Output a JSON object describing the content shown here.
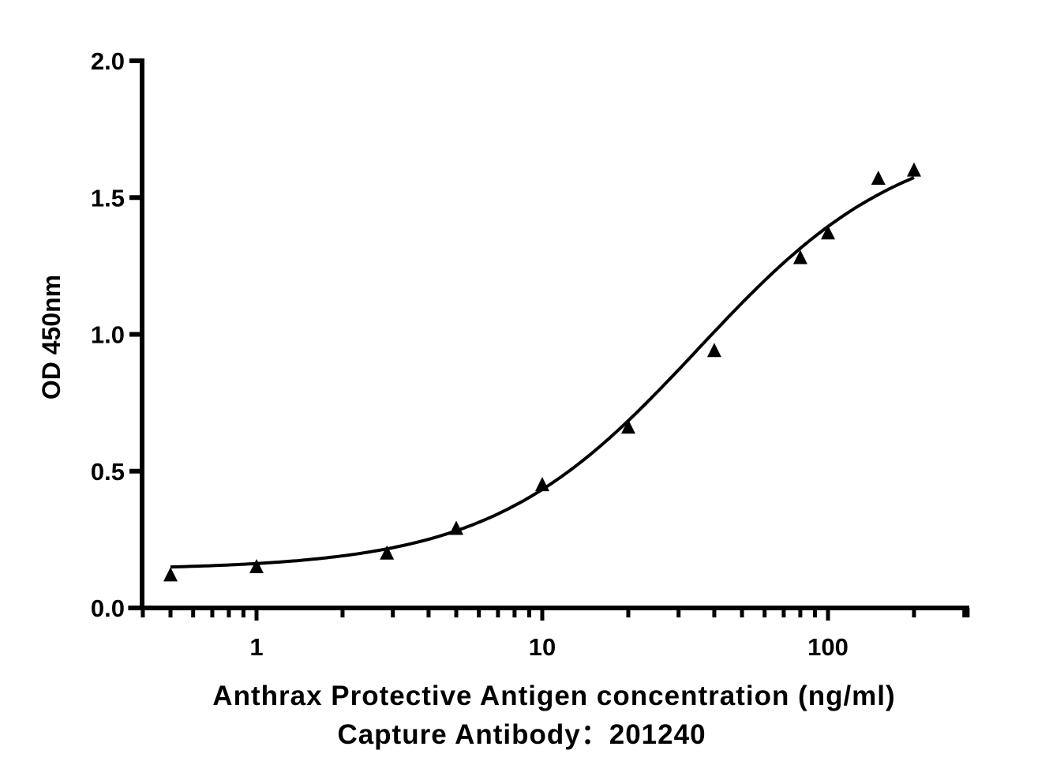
{
  "chart_data": {
    "type": "scatter",
    "title": "",
    "xlabel": "Anthrax Protective Antigen concentration (ng/ml)",
    "subtitle": "Capture Antibody：201240",
    "ylabel": "OD 450nm",
    "xscale": "log",
    "xlim": [
      0.36,
      312
    ],
    "ylim": [
      0,
      2.0
    ],
    "xticks": [
      {
        "value": 1,
        "label": "1"
      },
      {
        "value": 10,
        "label": "10"
      },
      {
        "value": 100,
        "label": "100"
      }
    ],
    "yticks": [
      {
        "value": 0,
        "label": "0.0"
      },
      {
        "value": 0.5,
        "label": "0.5"
      },
      {
        "value": 1.0,
        "label": "1.0"
      },
      {
        "value": 1.5,
        "label": "1.5"
      },
      {
        "value": 2.0,
        "label": "2.0"
      }
    ],
    "grid": false,
    "series": [
      {
        "name": "OD 450nm",
        "marker": "triangle",
        "color": "#000000",
        "x": [
          0.5,
          1,
          2.86,
          5,
          10,
          20,
          40,
          80,
          100,
          150,
          200
        ],
        "y": [
          0.12,
          0.15,
          0.2,
          0.29,
          0.45,
          0.66,
          0.94,
          1.28,
          1.37,
          1.57,
          1.6
        ]
      }
    ],
    "fit": {
      "model": "4PL",
      "bottom": 0.14,
      "top": 1.75,
      "ec50": 35,
      "hill": 1.2,
      "x_range": [
        0.5,
        200
      ]
    }
  }
}
